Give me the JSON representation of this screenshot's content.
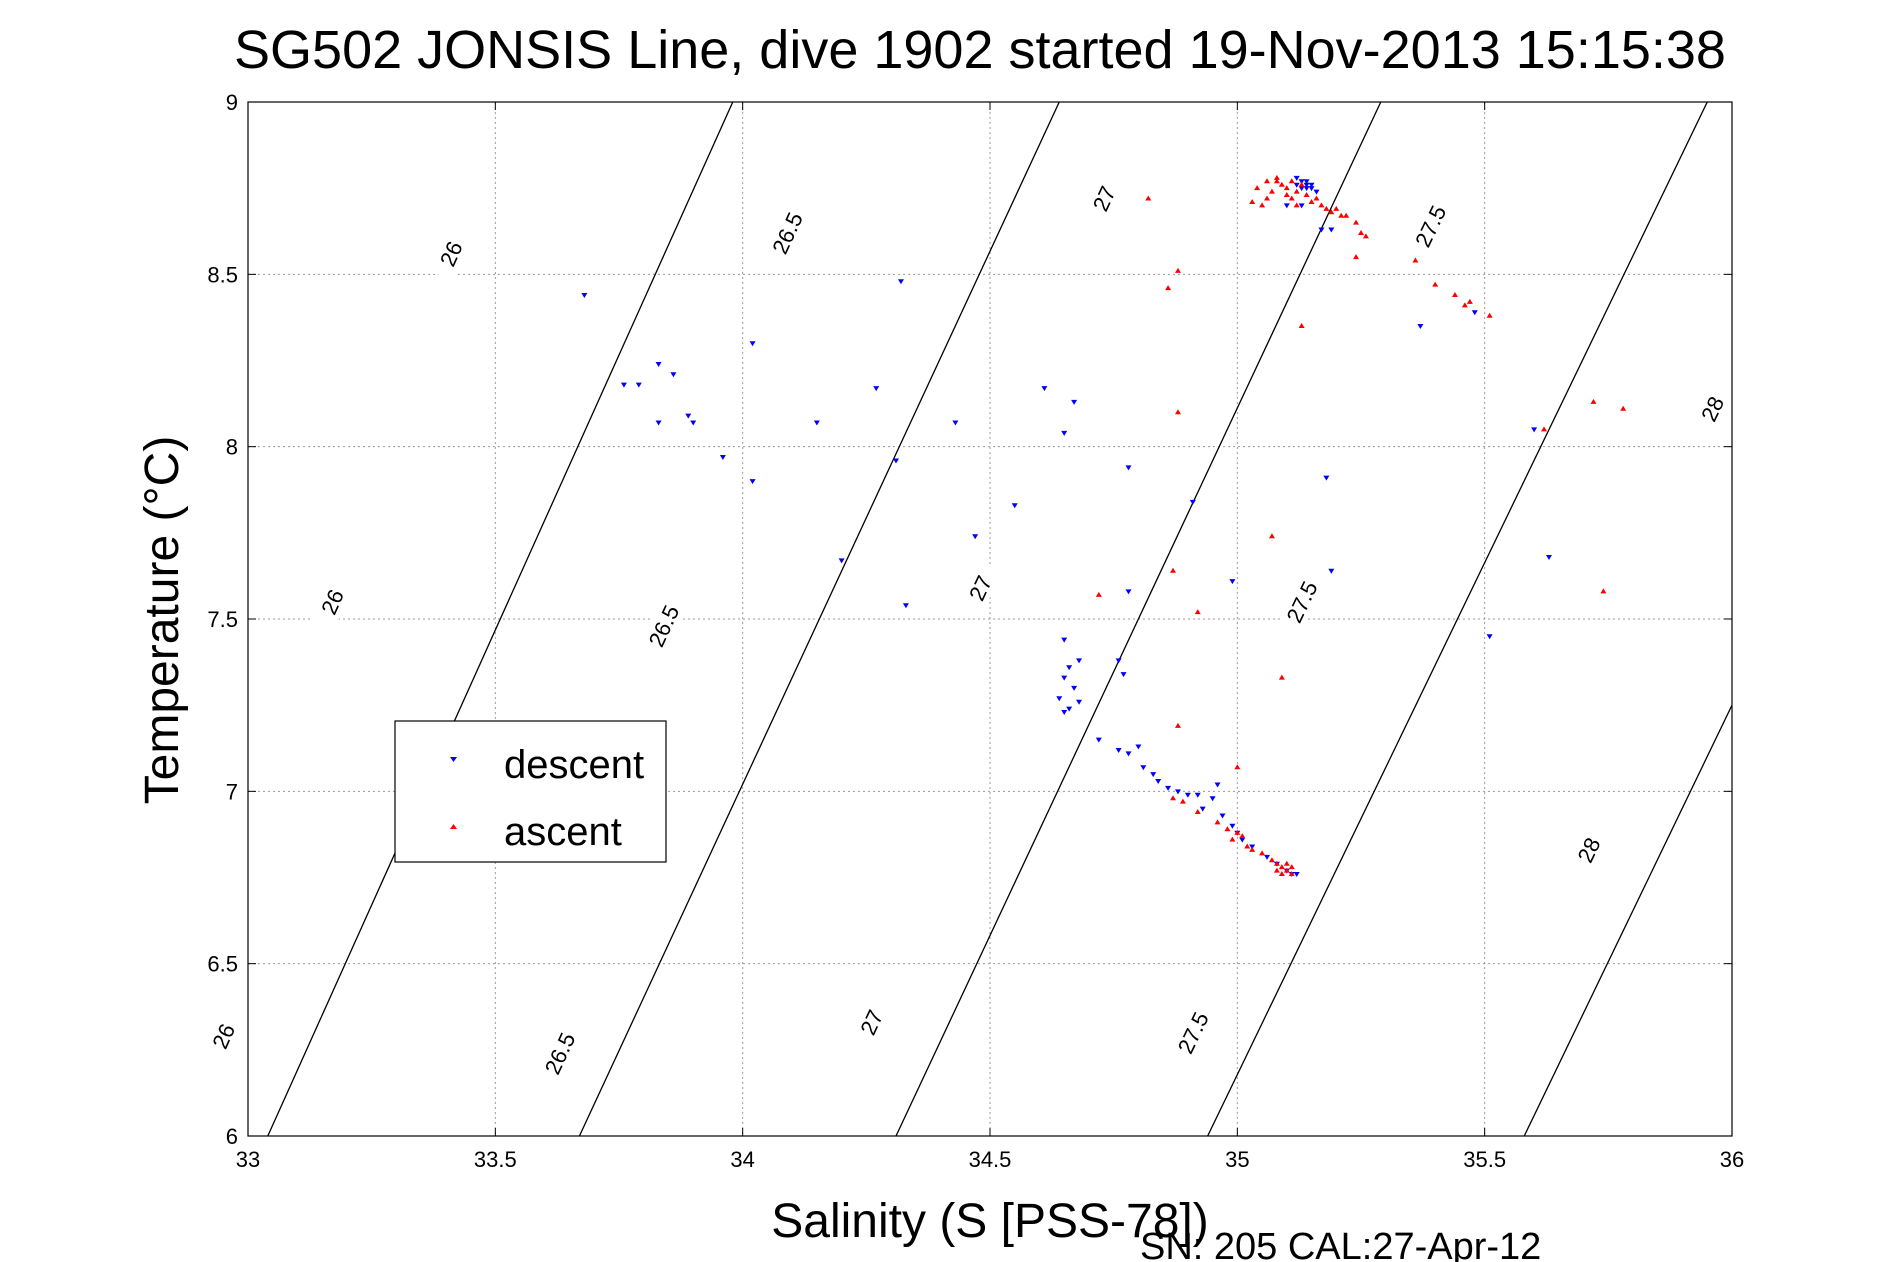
{
  "chart_data": {
    "type": "scatter",
    "title": "SG502 JONSIS Line, dive 1902 started 19-Nov-2013 15:15:38",
    "xlabel": "Salinity (S [PSS-78])",
    "ylabel": "Temperature (°C)",
    "xlim": [
      33,
      36
    ],
    "ylim": [
      6,
      9
    ],
    "x_ticks": [
      "33",
      "33.5",
      "34",
      "34.5",
      "35",
      "35.5",
      "36"
    ],
    "y_ticks": [
      "6",
      "6.5",
      "7",
      "7.5",
      "8",
      "8.5",
      "9"
    ],
    "grid": true,
    "legend_position": "center-left",
    "footnote": "SN: 205  CAL:27-Apr-12",
    "density_contours": [
      {
        "label": "26",
        "line": [
          [
            33.04,
            6.0
          ],
          [
            33.98,
            9.0
          ]
        ],
        "label_positions": [
          [
            33.41,
            8.56
          ],
          [
            33.17,
            7.55
          ],
          [
            32.95,
            6.29
          ]
        ]
      },
      {
        "label": "26.5",
        "line": [
          [
            33.67,
            6.0
          ],
          [
            34.64,
            9.0
          ]
        ],
        "label_positions": [
          [
            34.09,
            8.62
          ],
          [
            33.84,
            7.48
          ],
          [
            33.63,
            6.24
          ]
        ]
      },
      {
        "label": "27",
        "line": [
          [
            34.31,
            6.0
          ],
          [
            35.29,
            9.0
          ]
        ],
        "label_positions": [
          [
            34.73,
            8.72
          ],
          [
            34.48,
            7.59
          ],
          [
            34.26,
            6.33
          ]
        ]
      },
      {
        "label": "27.5",
        "line": [
          [
            34.94,
            6.0
          ],
          [
            35.95,
            9.0
          ]
        ],
        "label_positions": [
          [
            35.39,
            8.64
          ],
          [
            35.13,
            7.55
          ],
          [
            34.91,
            6.3
          ]
        ]
      },
      {
        "label": "28",
        "line": [
          [
            35.58,
            6.0
          ],
          [
            36.0,
            7.25
          ]
        ],
        "label_positions": [
          [
            35.96,
            8.11
          ],
          [
            35.71,
            6.83
          ]
        ]
      }
    ],
    "series": [
      {
        "name": "descent",
        "color": "#0000ff",
        "marker": "triangle-down",
        "points": [
          [
            33.68,
            8.44
          ],
          [
            33.76,
            8.18
          ],
          [
            33.79,
            8.18
          ],
          [
            33.83,
            8.24
          ],
          [
            33.83,
            8.07
          ],
          [
            33.86,
            8.21
          ],
          [
            33.89,
            8.09
          ],
          [
            33.9,
            8.07
          ],
          [
            33.96,
            7.97
          ],
          [
            34.02,
            7.9
          ],
          [
            34.02,
            8.3
          ],
          [
            34.15,
            8.07
          ],
          [
            34.2,
            7.67
          ],
          [
            34.27,
            8.17
          ],
          [
            34.31,
            7.96
          ],
          [
            34.32,
            8.48
          ],
          [
            34.33,
            7.54
          ],
          [
            34.43,
            8.07
          ],
          [
            34.47,
            7.74
          ],
          [
            34.55,
            7.83
          ],
          [
            34.61,
            8.17
          ],
          [
            34.65,
            8.04
          ],
          [
            34.67,
            8.13
          ],
          [
            34.78,
            7.94
          ],
          [
            34.78,
            7.58
          ],
          [
            34.91,
            7.84
          ],
          [
            34.99,
            7.61
          ],
          [
            35.18,
            7.91
          ],
          [
            35.19,
            7.64
          ],
          [
            35.19,
            8.63
          ],
          [
            35.17,
            8.63
          ],
          [
            35.37,
            8.35
          ],
          [
            35.48,
            8.39
          ],
          [
            35.51,
            7.45
          ],
          [
            35.6,
            8.05
          ],
          [
            35.63,
            7.68
          ],
          [
            34.65,
            7.44
          ],
          [
            34.66,
            7.36
          ],
          [
            34.68,
            7.38
          ],
          [
            34.65,
            7.33
          ],
          [
            34.67,
            7.3
          ],
          [
            34.64,
            7.27
          ],
          [
            34.66,
            7.24
          ],
          [
            34.68,
            7.26
          ],
          [
            34.65,
            7.23
          ],
          [
            34.76,
            7.38
          ],
          [
            34.77,
            7.34
          ],
          [
            34.72,
            7.15
          ],
          [
            34.76,
            7.12
          ],
          [
            34.78,
            7.11
          ],
          [
            34.8,
            7.13
          ],
          [
            34.81,
            7.07
          ],
          [
            34.83,
            7.05
          ],
          [
            34.84,
            7.03
          ],
          [
            34.86,
            7.01
          ],
          [
            34.88,
            7.0
          ],
          [
            34.9,
            6.99
          ],
          [
            34.92,
            6.99
          ],
          [
            34.95,
            6.98
          ],
          [
            34.93,
            6.95
          ],
          [
            34.97,
            6.93
          ],
          [
            34.96,
            7.02
          ],
          [
            34.99,
            6.9
          ],
          [
            35.0,
            6.88
          ],
          [
            35.01,
            6.86
          ],
          [
            35.03,
            6.84
          ],
          [
            35.06,
            6.81
          ],
          [
            35.08,
            6.79
          ],
          [
            35.1,
            6.77
          ],
          [
            35.12,
            6.76
          ],
          [
            35.11,
            6.76
          ],
          [
            35.12,
            8.78
          ],
          [
            35.13,
            8.77
          ],
          [
            35.14,
            8.77
          ],
          [
            35.14,
            8.76
          ],
          [
            35.15,
            8.76
          ],
          [
            35.15,
            8.75
          ],
          [
            35.16,
            8.74
          ],
          [
            35.13,
            8.75
          ],
          [
            35.12,
            8.76
          ],
          [
            35.14,
            8.75
          ],
          [
            35.13,
            8.7
          ],
          [
            35.1,
            8.7
          ]
        ]
      },
      {
        "name": "ascent",
        "color": "#ff0000",
        "marker": "triangle-up",
        "points": [
          [
            34.72,
            7.57
          ],
          [
            34.82,
            8.72
          ],
          [
            34.86,
            8.46
          ],
          [
            34.88,
            8.51
          ],
          [
            34.88,
            8.1
          ],
          [
            34.87,
            7.64
          ],
          [
            34.92,
            7.52
          ],
          [
            34.88,
            7.19
          ],
          [
            35.0,
            7.07
          ],
          [
            35.07,
            7.74
          ],
          [
            35.09,
            7.33
          ],
          [
            35.13,
            8.35
          ],
          [
            35.36,
            8.54
          ],
          [
            35.4,
            8.47
          ],
          [
            35.44,
            8.44
          ],
          [
            35.46,
            8.41
          ],
          [
            35.47,
            8.42
          ],
          [
            35.51,
            8.38
          ],
          [
            35.62,
            8.05
          ],
          [
            35.72,
            8.13
          ],
          [
            35.74,
            7.58
          ],
          [
            35.78,
            8.11
          ],
          [
            35.03,
            8.71
          ],
          [
            35.04,
            8.75
          ],
          [
            35.06,
            8.77
          ],
          [
            35.07,
            8.74
          ],
          [
            35.08,
            8.78
          ],
          [
            35.08,
            8.77
          ],
          [
            35.09,
            8.76
          ],
          [
            35.1,
            8.75
          ],
          [
            35.1,
            8.73
          ],
          [
            35.11,
            8.77
          ],
          [
            35.11,
            8.72
          ],
          [
            35.12,
            8.7
          ],
          [
            35.12,
            8.74
          ],
          [
            35.13,
            8.76
          ],
          [
            35.14,
            8.73
          ],
          [
            35.15,
            8.71
          ],
          [
            35.16,
            8.72
          ],
          [
            35.17,
            8.7
          ],
          [
            35.18,
            8.69
          ],
          [
            35.19,
            8.68
          ],
          [
            35.2,
            8.69
          ],
          [
            35.21,
            8.67
          ],
          [
            35.22,
            8.67
          ],
          [
            35.24,
            8.65
          ],
          [
            35.25,
            8.62
          ],
          [
            35.26,
            8.61
          ],
          [
            35.24,
            8.55
          ],
          [
            35.05,
            8.7
          ],
          [
            35.06,
            8.72
          ],
          [
            34.87,
            6.98
          ],
          [
            34.89,
            6.97
          ],
          [
            34.92,
            6.94
          ],
          [
            34.96,
            6.91
          ],
          [
            34.98,
            6.89
          ],
          [
            34.99,
            6.86
          ],
          [
            35.0,
            6.88
          ],
          [
            35.01,
            6.87
          ],
          [
            35.02,
            6.84
          ],
          [
            35.03,
            6.83
          ],
          [
            35.05,
            6.82
          ],
          [
            35.07,
            6.8
          ],
          [
            35.08,
            6.79
          ],
          [
            35.09,
            6.78
          ],
          [
            35.1,
            6.77
          ],
          [
            35.09,
            6.76
          ],
          [
            35.11,
            6.78
          ],
          [
            35.1,
            6.79
          ],
          [
            35.08,
            6.77
          ],
          [
            35.11,
            6.76
          ]
        ]
      }
    ]
  },
  "legend": {
    "descent_label": "descent",
    "ascent_label": "ascent"
  }
}
